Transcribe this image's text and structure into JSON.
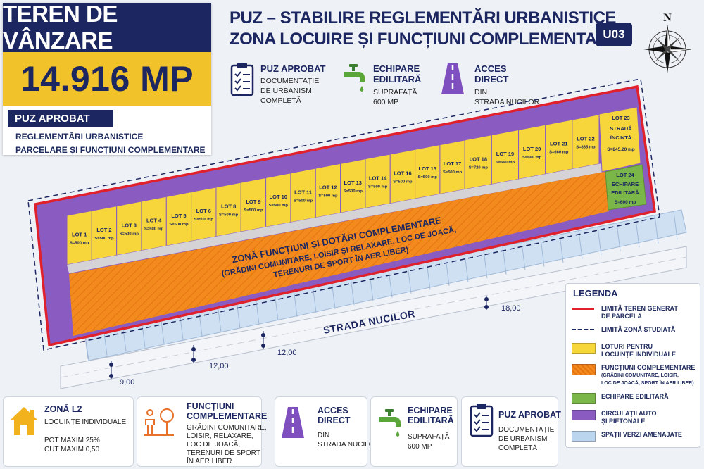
{
  "title_box": {
    "title": "TEREN DE VÂNZARE",
    "area": "14.916 MP",
    "puz_badge": "PUZ APROBAT",
    "sub_line1": "REGLEMENTĂRI URBANISTICE",
    "sub_line2": "PARCELARE ȘI FUNCȚIUNI COMPLEMENTARE"
  },
  "header": {
    "title_line1": "PUZ – STABILIRE REGLEMENTĂRI URBANISTICE",
    "title_line2": "ZONA LOCUIRE ȘI FUNCȚIUNI COMPLEMENTARE",
    "code": "U03",
    "compass_letter": "N"
  },
  "features": [
    {
      "icon": "clipboard-icon",
      "title": "PUZ APROBAT",
      "lines": [
        "DOCUMENTAȚIE",
        "DE URBANISM",
        "COMPLETĂ"
      ]
    },
    {
      "icon": "faucet-icon",
      "title": "ECHIPARE\nEDILITARĂ",
      "lines": [
        "SUPRAFAȚĂ",
        "600 MP"
      ]
    },
    {
      "icon": "road-icon",
      "title": "ACCES\nDIRECT",
      "lines": [
        "DIN",
        "STRADA NUCILOR"
      ]
    }
  ],
  "plan": {
    "lots": [
      {
        "name": "LOT 1",
        "area": "S=500 mp"
      },
      {
        "name": "LOT 2",
        "area": "S=500 mp"
      },
      {
        "name": "LOT 3",
        "area": "S=500 mp"
      },
      {
        "name": "LOT 4",
        "area": "S=500 mp"
      },
      {
        "name": "LOT 5",
        "area": "S=500 mp"
      },
      {
        "name": "LOT 6",
        "area": "S=500 mp"
      },
      {
        "name": "LOT 8",
        "area": "S=500 mp"
      },
      {
        "name": "LOT 9",
        "area": "S=500 mp"
      },
      {
        "name": "LOT 10",
        "area": "S=500 mp"
      },
      {
        "name": "LOT 11",
        "area": "S=500 mp"
      },
      {
        "name": "LOT 12",
        "area": "S=500 mp"
      },
      {
        "name": "LOT 13",
        "area": "S=500 mp"
      },
      {
        "name": "LOT 14",
        "area": "S=500 mp"
      },
      {
        "name": "LOT 16",
        "area": "S=500 mp"
      },
      {
        "name": "LOT 15",
        "area": "S=500 mp"
      },
      {
        "name": "LOT 17",
        "area": "S=500 mp"
      },
      {
        "name": "LOT 18",
        "area": "S=720 mp"
      },
      {
        "name": "LOT 19",
        "area": "S=660 mp"
      },
      {
        "name": "LOT 20",
        "area": "S=660 mp"
      },
      {
        "name": "LOT 21",
        "area": "S=660 mp"
      },
      {
        "name": "LOT 22",
        "area": "S=835 mp"
      }
    ],
    "lot23": {
      "name": "LOT 23",
      "line2": "STRADĂ",
      "line3": "ÎNCINTĂ",
      "area": "S=845,20 mp"
    },
    "lot24": {
      "name": "LOT 24",
      "line2": "ECHIPARE",
      "line3": "EDILITARĂ",
      "area": "S=600 mp"
    },
    "orange_zone": {
      "line1": "ZONĂ FUNCȚIUNI ȘI DOTĂRI COMPLEMENTARE",
      "line2": "(GRĂDINI COMUNITARE, LOISIR ȘI RELAXARE, LOC DE JOACĂ,",
      "line3": "TERENURI DE SPORT ÎN AER LIBER)"
    },
    "street": "STRADA NUCILOR",
    "dims": [
      "9,00",
      "12,00",
      "12,00",
      "18,00"
    ]
  },
  "legend": {
    "title": "LEGENDA",
    "items": [
      {
        "kind": "red-line",
        "color": "#e0202a",
        "text": "LIMITĂ TEREN GENERAT\nDE PARCELA"
      },
      {
        "kind": "dash-line",
        "color": "#1c2660",
        "text": "LIMITĂ ZONĂ STUDIATĂ"
      },
      {
        "kind": "box",
        "color": "#f6d63a",
        "text": "LOTURI PENTRU\nLOCUINȚE INDIVIDUALE"
      },
      {
        "kind": "hatch",
        "color": "#f28a1e",
        "text": "FUNCȚIUNI COMPLEMENTARE",
        "small": "(GRĂDINI COMUNITARE, LOISIR,\nLOC DE JOACĂ, SPORT ÎN AER LIBER)"
      },
      {
        "kind": "box",
        "color": "#7ab648",
        "text": "ECHIPARE EDILITARĂ"
      },
      {
        "kind": "box",
        "color": "#8a5cc2",
        "text": "CIRCULAȚII AUTO\nȘI PIETONALE"
      },
      {
        "kind": "box",
        "color": "#bcd5ee",
        "text": "SPAȚII VERZI AMENAJATE"
      }
    ]
  },
  "cards": [
    {
      "icon": "house-icon",
      "title": "ZONĂ L2",
      "lines": [
        "LOCUINȚE INDIVIDUALE",
        "",
        "POT MAXIM 25%",
        "CUT MAXIM 0,50"
      ]
    },
    {
      "icon": "family-tree-icon",
      "title": "FUNCȚIUNI\nCOMPLEMENTARE",
      "lines": [
        "GRĂDINI COMUNITARE,",
        "LOISIR, RELAXARE,",
        "LOC DE JOACĂ,",
        "TERENURI DE SPORT",
        "ÎN AER LIBER"
      ]
    },
    {
      "icon": "road-icon",
      "title": "ACCES\nDIRECT",
      "lines": [
        "DIN",
        "STRADA NUCILOR"
      ]
    },
    {
      "icon": "faucet-icon",
      "title": "ECHIPARE\nEDILITARĂ",
      "lines": [
        "SUPRAFAȚĂ",
        "600 MP"
      ]
    },
    {
      "icon": "clipboard-icon",
      "title": "PUZ APROBAT",
      "lines": [
        "DOCUMENTAȚIE",
        "DE URBANISM",
        "COMPLETĂ"
      ]
    }
  ],
  "colors": {
    "navy": "#1c2660",
    "yellow": "#f2c22a",
    "lot_yellow": "#f6d63a",
    "orange": "#f28a1e",
    "purple": "#8a5cc2",
    "green": "#7ab648",
    "red": "#e0202a",
    "light_blue": "#bcd5ee"
  }
}
